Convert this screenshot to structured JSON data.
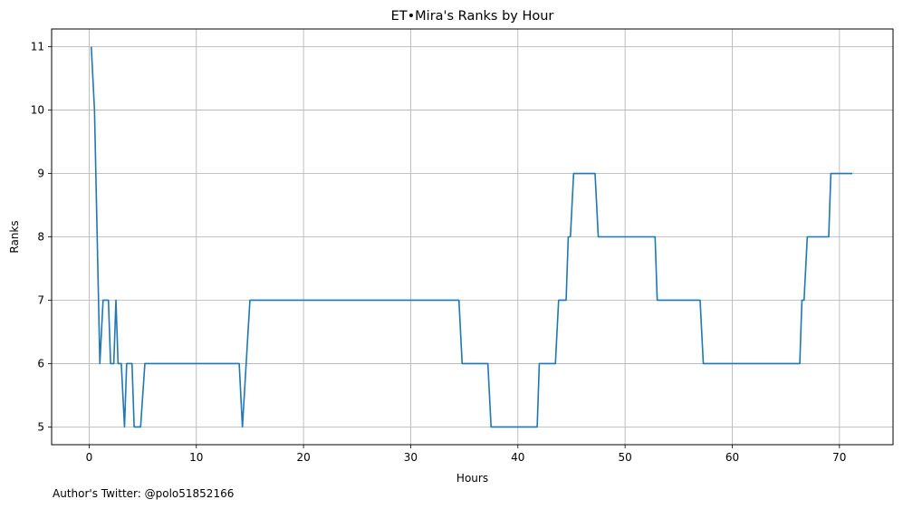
{
  "chart_data": {
    "type": "line",
    "title": "ET•Mira's Ranks by Hour",
    "xlabel": "Hours",
    "ylabel": "Ranks",
    "xlim": [
      -3.5,
      75
    ],
    "ylim": [
      4.72,
      11.28
    ],
    "xticks": [
      0,
      10,
      20,
      30,
      40,
      50,
      60,
      70
    ],
    "yticks": [
      5,
      6,
      7,
      8,
      9,
      10,
      11
    ],
    "grid": true,
    "line_color": "#1f77b4",
    "series": [
      {
        "x": [
          0.2,
          0.5,
          1.0,
          1.3,
          1.8,
          2.0,
          2.3,
          2.5,
          2.7,
          3.0,
          3.3,
          3.5,
          4.0,
          4.2,
          4.8,
          5.2,
          14.0,
          14.3,
          15.0,
          34.5,
          34.8,
          37.2,
          37.5,
          41.8,
          42.0,
          43.5,
          43.8,
          44.5,
          44.7,
          44.9,
          45.2,
          47.2,
          47.5,
          52.8,
          53.0,
          57.0,
          57.3,
          66.3,
          66.5,
          66.7,
          67.0,
          69.0,
          69.2,
          71.2
        ],
        "y": [
          11,
          10,
          6,
          7,
          7,
          6,
          6,
          7,
          6,
          6,
          5,
          6,
          6,
          5,
          5,
          6,
          6,
          5,
          7,
          7,
          6,
          6,
          5,
          5,
          6,
          6,
          7,
          7,
          8,
          8,
          9,
          9,
          8,
          8,
          7,
          7,
          6,
          6,
          7,
          7,
          8,
          8,
          9,
          9
        ]
      }
    ]
  },
  "footnote": "Author's Twitter: @polo51852166"
}
